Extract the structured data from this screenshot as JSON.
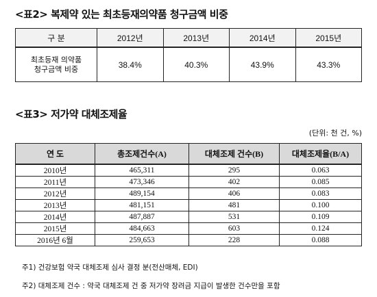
{
  "table1": {
    "title": "<표2> 복제약 있는 최초등재의약품 청구금액 비중",
    "header": [
      "구  분",
      "2012년",
      "2013년",
      "2014년",
      "2015년"
    ],
    "row_label_line1": "최초등재 의약품",
    "row_label_line2": "청구금액 비중",
    "values": [
      "38.4%",
      "40.3%",
      "43.9%",
      "43.3%"
    ]
  },
  "table2": {
    "title": "<표3> 저가약 대체조제율",
    "unit": "(단위: 천 건, %)",
    "header": [
      "연  도",
      "총조제건수(A)",
      "대체조제 건수(B)",
      "대체조제율(B/A)"
    ],
    "rows": [
      [
        "2010년",
        "465,311",
        "295",
        "0.063"
      ],
      [
        "2011년",
        "473,346",
        "402",
        "0.085"
      ],
      [
        "2012년",
        "489,154",
        "406",
        "0.083"
      ],
      [
        "2013년",
        "481,151",
        "481",
        "0.100"
      ],
      [
        "2014년",
        "487,887",
        "531",
        "0.109"
      ],
      [
        "2015년",
        "484,663",
        "603",
        "0.124"
      ],
      [
        "2016년 6월",
        "259,653",
        "228",
        "0.088"
      ]
    ]
  },
  "notes": [
    "주1) 건강보험 약국 대체조제 심사 결정 분(전산매체, EDI)",
    "주2) 대체조제 건수 : 약국 대체조제 건 중 저가약 장려금 지급이 발생한 건수만을 포함"
  ]
}
